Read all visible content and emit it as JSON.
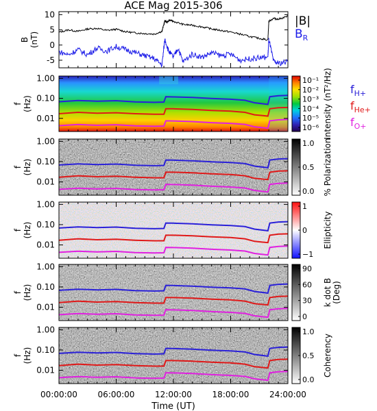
{
  "title": "ACE Mag 2015-306",
  "colors": {
    "H": "#2a20d8",
    "He": "#e01818",
    "O": "#e020e0",
    "B": "#000000",
    "BR": "#1a1ae8"
  },
  "x_tick_labels": [
    "00:00:00",
    "06:00:00",
    "12:00:00",
    "18:00:00",
    "24:00:00"
  ],
  "xlabel": "Time (UT)",
  "chart_data": [
    {
      "type": "line",
      "name": "magnetic-field",
      "ylabel": [
        "B",
        "(nT)"
      ],
      "y_ticks": [
        "10",
        "5",
        "0",
        "-5"
      ],
      "ylim": [
        -7.5,
        11
      ],
      "xlim": [
        0,
        24
      ],
      "legend": [
        "|B|",
        "BR"
      ],
      "series": [
        {
          "name": "|B|",
          "x": [
            0,
            1,
            2,
            3,
            4,
            5,
            6,
            7,
            8,
            9,
            10,
            10.8,
            11.1,
            11.3,
            11.6,
            12,
            13,
            14,
            15,
            16,
            17,
            18,
            19,
            20,
            21,
            21.9,
            22,
            22.5,
            23,
            24
          ],
          "y": [
            4.2,
            5.0,
            4.5,
            5.3,
            5.5,
            4.8,
            5.2,
            4.4,
            4.0,
            3.8,
            3.6,
            4.5,
            8.0,
            7.5,
            8.2,
            7.8,
            6.8,
            6.5,
            6.0,
            5.3,
            4.8,
            4.3,
            3.6,
            2.8,
            2.2,
            1.7,
            7.8,
            8.8,
            8.5,
            9.5
          ]
        },
        {
          "name": "BR",
          "x": [
            0,
            1,
            2,
            3,
            4,
            5,
            6,
            7,
            8,
            9,
            10,
            10.8,
            11.1,
            11.5,
            12,
            12.5,
            13,
            14,
            15,
            16,
            17,
            18,
            19,
            20,
            21,
            21.9,
            22,
            22.5,
            23,
            24
          ],
          "y": [
            -2.2,
            -3.2,
            -1.5,
            -3.2,
            -1.0,
            -2.0,
            -0.5,
            -1.5,
            -2.5,
            -3.5,
            -4.5,
            -6.5,
            2.0,
            -2.0,
            -4.0,
            -1.0,
            -5.5,
            -3.0,
            -4.0,
            -2.5,
            -3.5,
            -3.0,
            -5.0,
            -4.5,
            -4.2,
            -4.0,
            2.0,
            -5.5,
            -6.0,
            -5.5
          ]
        }
      ]
    },
    {
      "type": "heatmap",
      "name": "intensity",
      "ylabel": [
        "f",
        "(Hz)"
      ],
      "y_ticks": [
        "1.00",
        "0.10",
        "0.01"
      ],
      "colorbar_label": "Intensity (nT²/Hz)",
      "colorbar_ticks": [
        "10⁻¹",
        "10⁻²",
        "10⁻³",
        "10⁻⁴",
        "10⁻⁵",
        "10⁻⁶"
      ],
      "ion_labels": [
        "fH+",
        "fHe+",
        "fO+"
      ]
    },
    {
      "type": "heatmap",
      "name": "polarization",
      "ylabel": [
        "f",
        "(Hz)"
      ],
      "y_ticks": [
        "1.00",
        "0.10",
        "0.01"
      ],
      "colorbar_label": "% Polarization",
      "colorbar_ticks": [
        "1.0",
        "0.5",
        "0.0"
      ]
    },
    {
      "type": "heatmap",
      "name": "ellipticity",
      "ylabel": [
        "f",
        "(Hz)"
      ],
      "y_ticks": [
        "1.00",
        "0.10",
        "0.01"
      ],
      "colorbar_label": "Ellipticity",
      "colorbar_ticks": [
        "1",
        "0",
        "−1"
      ]
    },
    {
      "type": "heatmap",
      "name": "k-dot-b",
      "ylabel": [
        "f",
        "(Hz)"
      ],
      "y_ticks": [
        "1.00",
        "0.10",
        "0.01"
      ],
      "colorbar_label": "k dot B (Deg)",
      "colorbar_label_lines": [
        "k dot B",
        "(Deg)"
      ],
      "colorbar_ticks": [
        "90",
        "60",
        "30",
        "0"
      ]
    },
    {
      "type": "heatmap",
      "name": "coherency",
      "ylabel": [
        "f",
        "(Hz)"
      ],
      "y_ticks": [
        "1.00",
        "0.10",
        "0.01"
      ],
      "colorbar_label": "Coherency",
      "colorbar_ticks": [
        "1.0",
        "0.5",
        "0.0"
      ]
    }
  ],
  "gyrofrequency": {
    "x": [
      0,
      2,
      4,
      6,
      8,
      10,
      11.0,
      11.2,
      12,
      14,
      16,
      18,
      19.5,
      20.5,
      21.9,
      22.1,
      23,
      24
    ],
    "H": [
      0.068,
      0.078,
      0.072,
      0.076,
      0.066,
      0.063,
      0.065,
      0.12,
      0.118,
      0.11,
      0.098,
      0.09,
      0.08,
      0.06,
      0.05,
      0.12,
      0.135,
      0.14
    ],
    "He": [
      0.017,
      0.02,
      0.018,
      0.019,
      0.017,
      0.016,
      0.016,
      0.03,
      0.03,
      0.028,
      0.025,
      0.023,
      0.02,
      0.015,
      0.013,
      0.03,
      0.034,
      0.035
    ],
    "O": [
      0.0043,
      0.0049,
      0.0045,
      0.0048,
      0.0042,
      0.004,
      0.0041,
      0.0075,
      0.0074,
      0.0069,
      0.0061,
      0.0056,
      0.005,
      0.0038,
      0.0032,
      0.0075,
      0.0084,
      0.0088
    ]
  }
}
